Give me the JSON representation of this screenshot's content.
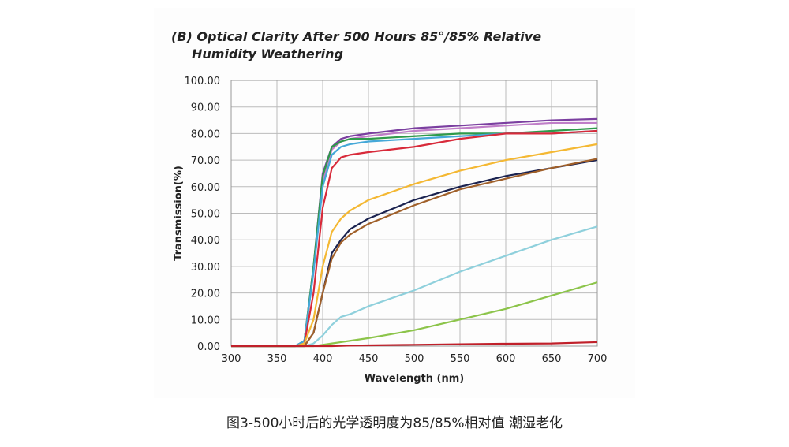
{
  "caption": "图3-500小时后的光学透明度为85/85%相对值 潮湿老化",
  "chart_data": {
    "type": "line",
    "title_line1": "(B) Optical Clarity After 500 Hours 85°/85% Relative",
    "title_line2": "Humidity Weathering",
    "xlabel": "Wavelength (nm)",
    "ylabel": "Transmission(%)",
    "xlim": [
      300,
      700
    ],
    "ylim": [
      0,
      100
    ],
    "grid": true,
    "xticks": [
      "300",
      "350",
      "400",
      "450",
      "500",
      "550",
      "600",
      "650",
      "700"
    ],
    "yticks": [
      "0.00",
      "10.00",
      "20.00",
      "30.00",
      "40.00",
      "50.00",
      "60.00",
      "70.00",
      "80.00",
      "90.00",
      "100.00"
    ],
    "x": [
      300,
      370,
      380,
      390,
      400,
      410,
      420,
      430,
      450,
      500,
      550,
      600,
      650,
      700
    ],
    "series": [
      {
        "color": "#7b3fa0",
        "values": [
          0,
          0,
          2,
          30,
          65,
          75,
          78,
          79,
          80,
          82,
          83,
          84,
          85,
          85.5
        ]
      },
      {
        "color": "#c07ec8",
        "values": [
          0,
          0,
          2,
          28,
          62,
          74,
          77,
          78,
          79,
          81,
          82,
          83,
          84,
          84
        ]
      },
      {
        "color": "#2e9a4a",
        "values": [
          0,
          0,
          2,
          30,
          64,
          75,
          77,
          78,
          78,
          79,
          80,
          80,
          81,
          82
        ]
      },
      {
        "color": "#45a8d8",
        "values": [
          0,
          0,
          2,
          28,
          60,
          72,
          75,
          76,
          77,
          78,
          79,
          80,
          80,
          81
        ]
      },
      {
        "color": "#d82a3a",
        "values": [
          0,
          0,
          1,
          20,
          52,
          67,
          71,
          72,
          73,
          75,
          78,
          80,
          80,
          81
        ]
      },
      {
        "color": "#f4b833",
        "values": [
          0,
          0,
          1,
          10,
          30,
          43,
          48,
          51,
          55,
          61,
          66,
          70,
          73,
          76
        ]
      },
      {
        "color": "#1b2350",
        "values": [
          0,
          0,
          0,
          5,
          20,
          35,
          40,
          44,
          48,
          55,
          60,
          64,
          67,
          70
        ]
      },
      {
        "color": "#a0602a",
        "values": [
          0,
          0,
          0,
          5,
          20,
          33,
          39,
          42,
          46,
          53,
          59,
          63,
          67,
          70.5
        ]
      },
      {
        "color": "#8fd0dc",
        "values": [
          0,
          0,
          0,
          1,
          4,
          8,
          11,
          12,
          15,
          21,
          28,
          34,
          40,
          45
        ]
      },
      {
        "color": "#8cc44a",
        "values": [
          0,
          0,
          0,
          0,
          0.5,
          1,
          1.5,
          2,
          3,
          6,
          10,
          14,
          19,
          24
        ]
      },
      {
        "color": "#c0202a",
        "values": [
          0,
          0,
          0,
          0,
          0,
          0,
          0.1,
          0.2,
          0.3,
          0.5,
          0.7,
          0.9,
          1,
          1.5
        ]
      }
    ]
  }
}
